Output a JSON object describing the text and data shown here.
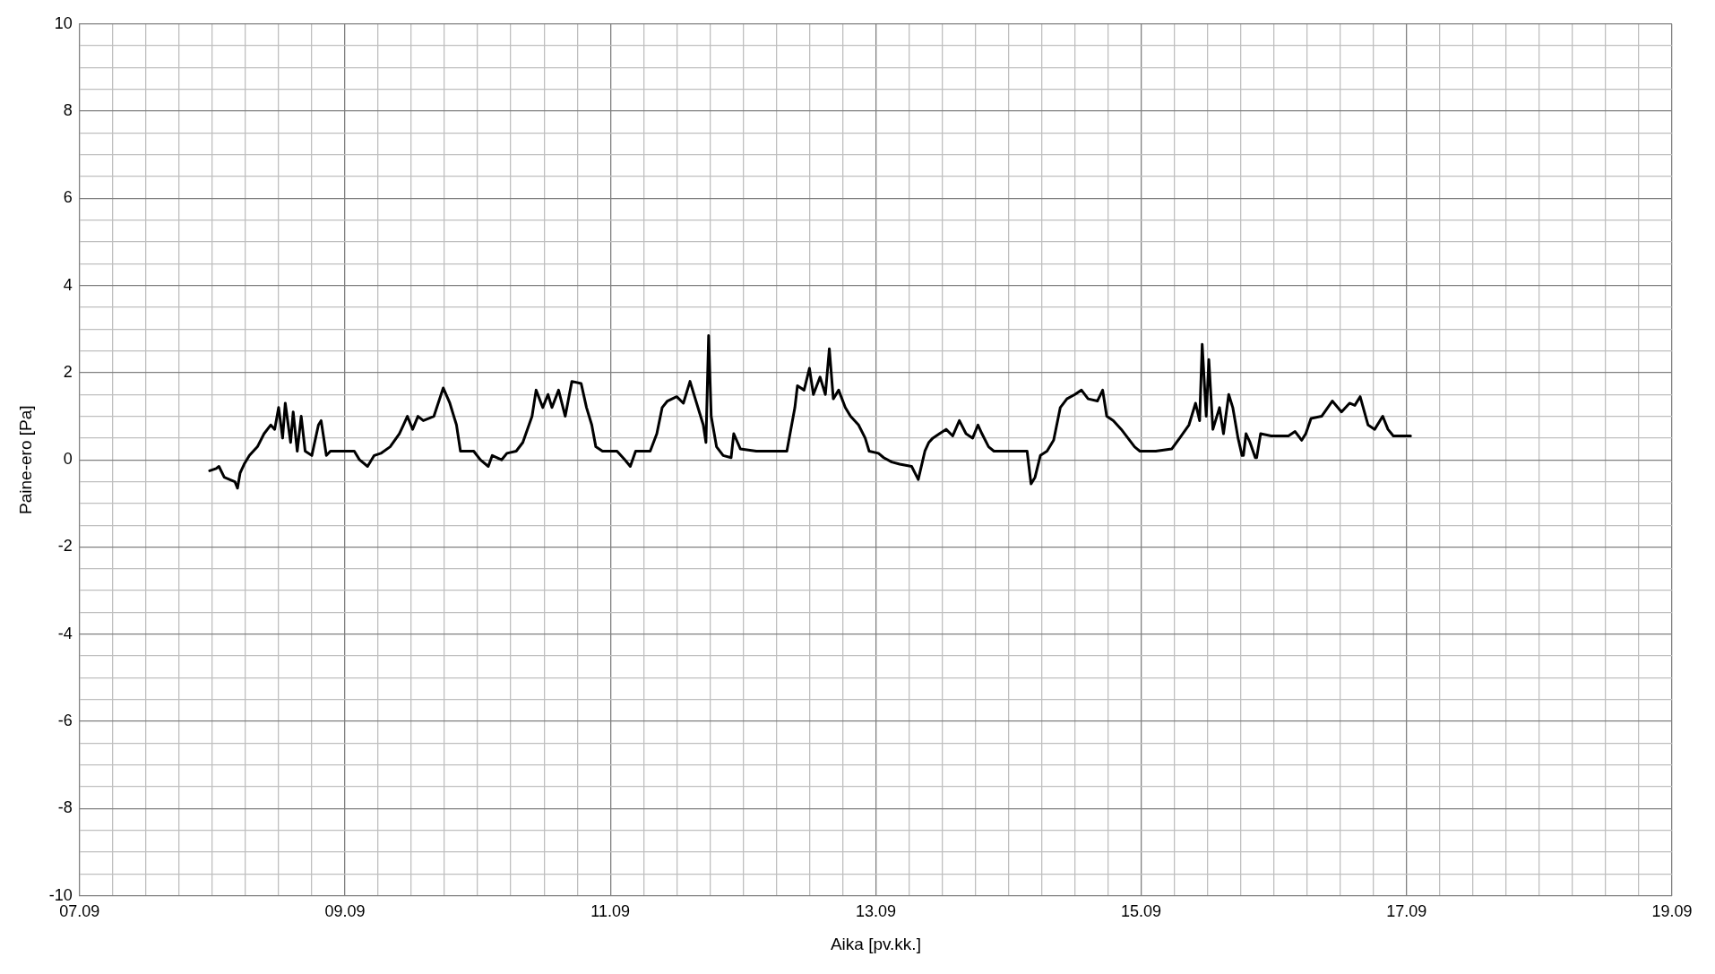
{
  "chart_data": {
    "type": "line",
    "xlabel": "Aika [pv.kk.]",
    "ylabel": "Paine-ero [Pa]",
    "grid": true,
    "legend": false,
    "marker": "none",
    "line_style": "solid",
    "xlim": [
      "--09-07",
      "--09-19"
    ],
    "ylim": [
      -10,
      10
    ],
    "xticks": [
      {
        "value": "--09-07",
        "label": "07.09"
      },
      {
        "value": "--09-07T06:00",
        "label": null
      },
      {
        "value": "--09-07T12:00",
        "label": null
      },
      {
        "value": "--09-07T18:00",
        "label": null
      },
      {
        "value": "--09-08",
        "label": null
      },
      {
        "value": "--09-08T06:00",
        "label": null
      },
      {
        "value": "--09-08T12:00",
        "label": null
      },
      {
        "value": "--09-08T18:00",
        "label": null
      },
      {
        "value": "--09-09",
        "label": "09.09"
      },
      {
        "value": "--09-09T06:00",
        "label": null
      },
      {
        "value": "--09-09T12:00",
        "label": null
      },
      {
        "value": "--09-09T18:00",
        "label": null
      },
      {
        "value": "--09-10",
        "label": null
      },
      {
        "value": "--09-10T06:00",
        "label": null
      },
      {
        "value": "--09-10T12:00",
        "label": null
      },
      {
        "value": "--09-10T18:00",
        "label": null
      },
      {
        "value": "--09-11",
        "label": "11.09"
      },
      {
        "value": "--09-11T06:00",
        "label": null
      },
      {
        "value": "--09-11T12:00",
        "label": null
      },
      {
        "value": "--09-11T18:00",
        "label": null
      },
      {
        "value": "--09-12",
        "label": null
      },
      {
        "value": "--09-12T06:00",
        "label": null
      },
      {
        "value": "--09-12T12:00",
        "label": null
      },
      {
        "value": "--09-12T18:00",
        "label": null
      },
      {
        "value": "--09-13",
        "label": "13.09"
      },
      {
        "value": "--09-13T06:00",
        "label": null
      },
      {
        "value": "--09-13T12:00",
        "label": null
      },
      {
        "value": "--09-13T18:00",
        "label": null
      },
      {
        "value": "--09-14",
        "label": null
      },
      {
        "value": "--09-14T06:00",
        "label": null
      },
      {
        "value": "--09-14T12:00",
        "label": null
      },
      {
        "value": "--09-14T18:00",
        "label": null
      },
      {
        "value": "--09-15",
        "label": "15.09"
      },
      {
        "value": "--09-15T06:00",
        "label": null
      },
      {
        "value": "--09-15T12:00",
        "label": null
      },
      {
        "value": "--09-15T18:00",
        "label": null
      },
      {
        "value": "--09-16",
        "label": null
      },
      {
        "value": "--09-16T06:00",
        "label": null
      },
      {
        "value": "--09-16T12:00",
        "label": null
      },
      {
        "value": "--09-16T18:00",
        "label": null
      },
      {
        "value": "--09-17",
        "label": "17.09"
      },
      {
        "value": "--09-17T06:00",
        "label": null
      },
      {
        "value": "--09-17T12:00",
        "label": null
      },
      {
        "value": "--09-17T18:00",
        "label": null
      },
      {
        "value": "--09-18",
        "label": null
      },
      {
        "value": "--09-18T06:00",
        "label": null
      },
      {
        "value": "--09-18T12:00",
        "label": null
      },
      {
        "value": "--09-18T18:00",
        "label": null
      },
      {
        "value": "--09-19",
        "label": "19.09"
      }
    ],
    "yticks": [
      -10,
      {
        "value": -9.5,
        "label": null
      },
      {
        "value": -9,
        "label": null
      },
      {
        "value": -8.5,
        "label": null
      },
      -8,
      {
        "value": -7.5,
        "label": null
      },
      {
        "value": -7,
        "label": null
      },
      {
        "value": -6.5,
        "label": null
      },
      -6,
      {
        "value": -5.5,
        "label": null
      },
      {
        "value": -5,
        "label": null
      },
      {
        "value": -4.5,
        "label": null
      },
      -4,
      {
        "value": -3.5,
        "label": null
      },
      {
        "value": -3,
        "label": null
      },
      {
        "value": -2.5,
        "label": null
      },
      -2,
      {
        "value": -1.5,
        "label": null
      },
      {
        "value": -1,
        "label": null
      },
      {
        "value": -0.5,
        "label": null
      },
      0,
      {
        "value": 0.5,
        "label": null
      },
      {
        "value": 1,
        "label": null
      },
      {
        "value": 1.5,
        "label": null
      },
      2,
      {
        "value": 2.5,
        "label": null
      },
      {
        "value": 3,
        "label": null
      },
      {
        "value": 3.5,
        "label": null
      },
      4,
      {
        "value": 4.5,
        "label": null
      },
      {
        "value": 5,
        "label": null
      },
      {
        "value": 5.5,
        "label": null
      },
      6,
      {
        "value": 6.5,
        "label": null
      },
      {
        "value": 7,
        "label": null
      },
      {
        "value": 7.5,
        "label": null
      },
      8,
      {
        "value": 8.5,
        "label": null
      },
      {
        "value": 9,
        "label": null
      },
      {
        "value": 9.5,
        "label": null
      },
      10
    ],
    "series": [
      {
        "color": "#000000",
        "x": [
          "--09-07T23:31",
          "--09-08T00:43",
          "--09-08T01:12",
          "--09-08T02:10",
          "--09-08T03:07",
          "--09-08T04:05",
          "--09-08T04:34",
          "--09-08T05:02",
          "--09-08T05:46",
          "--09-08T06:43",
          "--09-08T08:10",
          "--09-08T09:22",
          "--09-08T10:34",
          "--09-08T11:17",
          "--09-08T12:00",
          "--09-08T12:43",
          "--09-08T13:12",
          "--09-08T14:10",
          "--09-08T14:38",
          "--09-08T15:22",
          "--09-08T16:05",
          "--09-08T16:48",
          "--09-08T18:00",
          "--09-08T19:12",
          "--09-08T19:41",
          "--09-08T20:38",
          "--09-08T21:22",
          "--09-08T23:02",
          "--09-09T01:41",
          "--09-09T02:38",
          "--09-09T04:05",
          "--09-09T05:17",
          "--09-09T06:29",
          "--09-09T08:10",
          "--09-09T09:50",
          "--09-09T10:34",
          "--09-09T11:17",
          "--09-09T12:14",
          "--09-09T13:12",
          "--09-09T14:10",
          "--09-09T16:05",
          "--09-09T17:46",
          "--09-09T18:58",
          "--09-09T20:10",
          "--09-09T20:53",
          "--09-09T23:17",
          "--09-10T00:29",
          "--09-10T01:55",
          "--09-10T02:38",
          "--09-10T04:19",
          "--09-10T05:17",
          "--09-10T06:58",
          "--09-10T08:10",
          "--09-10T09:50",
          "--09-10T10:34",
          "--09-10T11:46",
          "--09-10T12:43",
          "--09-10T13:26",
          "--09-10T14:38",
          "--09-10T15:50",
          "--09-10T17:02",
          "--09-10T18:43",
          "--09-10T19:41",
          "--09-10T20:38",
          "--09-10T21:22",
          "--09-10T22:34",
          "--09-11T01:12",
          "--09-11T02:38",
          "--09-11T03:36",
          "--09-11T04:34",
          "--09-11T07:12",
          "--09-11T08:24",
          "--09-11T09:22",
          "--09-11T10:19",
          "--09-11T12:00",
          "--09-11T13:12",
          "--09-11T14:24",
          "--09-11T15:36",
          "--09-11T16:48",
          "--09-11T17:17",
          "--09-11T17:46",
          "--09-11T18:14",
          "--09-11T19:12",
          "--09-11T20:24",
          "--09-11T21:50",
          "--09-11T22:19",
          "--09-11T23:31",
          "--09-12T02:24",
          "--09-12T05:17",
          "--09-12T07:55",
          "--09-12T09:22",
          "--09-12T09:50",
          "--09-12T11:02",
          "--09-12T12:00",
          "--09-12T12:43",
          "--09-12T13:55",
          "--09-12T14:53",
          "--09-12T15:36",
          "--09-12T16:19",
          "--09-12T17:17",
          "--09-12T18:29",
          "--09-12T19:26",
          "--09-12T20:53",
          "--09-12T22:05",
          "--09-12T22:48",
          "--09-13T00:29",
          "--09-13T01:26",
          "--09-13T02:53",
          "--09-13T04:19",
          "--09-13T06:29",
          "--09-13T07:41",
          "--09-13T08:53",
          "--09-13T09:36",
          "--09-13T10:19",
          "--09-13T11:31",
          "--09-13T12:43",
          "--09-13T13:55",
          "--09-13T15:07",
          "--09-13T16:19",
          "--09-13T17:31",
          "--09-13T18:29",
          "--09-13T19:12",
          "--09-13T20:24",
          "--09-13T21:22",
          "--09-14T01:26",
          "--09-14T03:22",
          "--09-14T04:05",
          "--09-14T04:48",
          "--09-14T05:46",
          "--09-14T06:58",
          "--09-14T08:10",
          "--09-14T09:22",
          "--09-14T10:34",
          "--09-14T12:00",
          "--09-14T13:12",
          "--09-14T14:24",
          "--09-14T16:05",
          "--09-14T17:02",
          "--09-14T17:46",
          "--09-14T18:58",
          "--09-14T20:24",
          "--09-14T21:36",
          "--09-14T22:48",
          "--09-14T23:46",
          "--09-15T02:38",
          "--09-15T05:31",
          "--09-15T06:58",
          "--09-15T08:38",
          "--09-15T09:50",
          "--09-15T10:34",
          "--09-15T11:02",
          "--09-15T11:46",
          "--09-15T12:14",
          "--09-15T12:58",
          "--09-15T14:10",
          "--09-15T14:53",
          "--09-15T15:50",
          "--09-15T16:34",
          "--09-15T17:31",
          "--09-15T18:14",
          "--09-15T18:29",
          "--09-15T18:58",
          "--09-15T19:41",
          "--09-15T20:38",
          "--09-15T20:53",
          "--09-15T21:36",
          "--09-15T23:31",
          "--09-16T02:38",
          "--09-16T03:50",
          "--09-16T05:02",
          "--09-16T05:46",
          "--09-16T06:43",
          "--09-16T08:38",
          "--09-16T10:34",
          "--09-16T12:14",
          "--09-16T13:41",
          "--09-16T14:38",
          "--09-16T15:36",
          "--09-16T17:02",
          "--09-16T18:14",
          "--09-16T19:41",
          "--09-16T20:38",
          "--09-16T21:36",
          "--09-16T23:02",
          "--09-17T00:43"
        ],
        "values": [
          -0.25,
          -0.2,
          -0.15,
          -0.4,
          -0.45,
          -0.5,
          -0.65,
          -0.3,
          -0.1,
          0.1,
          0.3,
          0.6,
          0.8,
          0.7,
          1.2,
          0.5,
          1.3,
          0.4,
          1.1,
          0.2,
          1.0,
          0.2,
          0.1,
          0.8,
          0.9,
          0.1,
          0.2,
          0.2,
          0.2,
          0,
          -0.15,
          0.1,
          0.15,
          0.3,
          0.6,
          0.8,
          1.0,
          0.7,
          1.0,
          0.9,
          1.0,
          1.65,
          1.3,
          0.8,
          0.2,
          0.2,
          0,
          -0.15,
          0.1,
          0,
          0.15,
          0.2,
          0.4,
          1.0,
          1.6,
          1.2,
          1.5,
          1.2,
          1.6,
          1.0,
          1.8,
          1.75,
          1.2,
          0.8,
          0.3,
          0.2,
          0.2,
          0,
          -0.15,
          0.2,
          0.2,
          0.6,
          1.2,
          1.35,
          1.45,
          1.3,
          1.8,
          1.3,
          0.8,
          0.4,
          2.85,
          1.0,
          0.3,
          0.1,
          0.05,
          0.6,
          0.25,
          0.2,
          0.2,
          0.2,
          1.2,
          1.7,
          1.6,
          2.1,
          1.5,
          1.9,
          1.5,
          2.55,
          1.4,
          1.6,
          1.2,
          1.0,
          0.8,
          0.5,
          0.2,
          0.15,
          0.05,
          -0.05,
          -0.1,
          -0.15,
          -0.45,
          0.2,
          0.4,
          0.5,
          0.6,
          0.7,
          0.55,
          0.9,
          0.6,
          0.5,
          0.8,
          0.6,
          0.3,
          0.2,
          0.2,
          0.2,
          -0.55,
          -0.4,
          0.1,
          0.2,
          0.45,
          1.2,
          1.4,
          1.5,
          1.6,
          1.4,
          1.35,
          1.6,
          1.0,
          0.9,
          0.7,
          0.5,
          0.3,
          0.2,
          0.2,
          0.25,
          0.5,
          0.8,
          1.3,
          0.9,
          2.65,
          1.0,
          2.3,
          0.7,
          1.2,
          0.6,
          1.5,
          1.2,
          0.5,
          0.1,
          0.1,
          0.6,
          0.4,
          0.05,
          0.05,
          0.6,
          0.55,
          0.55,
          0.65,
          0.45,
          0.6,
          0.95,
          1.0,
          1.35,
          1.1,
          1.3,
          1.25,
          1.45,
          0.8,
          0.7,
          1.0,
          0.7,
          0.55,
          0.55,
          0.55
        ]
      }
    ]
  }
}
